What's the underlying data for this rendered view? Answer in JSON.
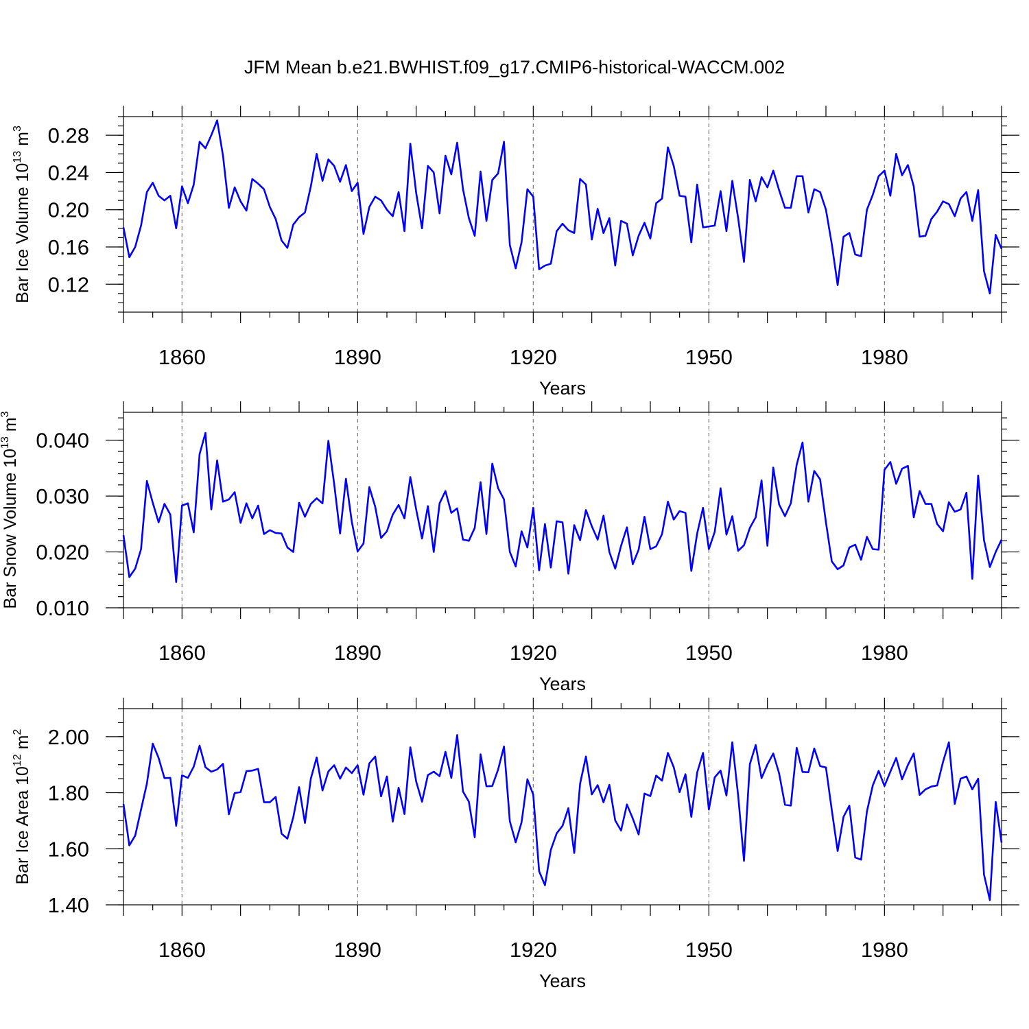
{
  "figure": {
    "title": "JFM Mean b.e21.BWHIST.f09_g17.CMIP6-historical-WACCM.002"
  },
  "chart_data": [
    {
      "type": "line",
      "name": "ice-volume",
      "ylabel": {
        "text": "Bar Ice Volume 10",
        "exp": "13",
        "unit": " m",
        "unit_exp": "3"
      },
      "xlabel": "Years",
      "xlim": [
        1850,
        2000
      ],
      "ylim": [
        0.09,
        0.3
      ],
      "yticks": [
        0.12,
        0.16,
        0.2,
        0.24,
        0.28
      ],
      "ytick_labels": [
        "0.12",
        "0.16",
        "0.20",
        "0.24",
        "0.28"
      ],
      "yminor_step": 0.01,
      "xticks": [
        1860,
        1890,
        1920,
        1950,
        1980
      ],
      "xtick_labels": [
        "1860",
        "1890",
        "1920",
        "1950",
        "1980"
      ],
      "x_start": 1850,
      "values": [
        0.181,
        0.149,
        0.16,
        0.183,
        0.219,
        0.229,
        0.215,
        0.21,
        0.215,
        0.18,
        0.225,
        0.207,
        0.227,
        0.273,
        0.266,
        0.28,
        0.296,
        0.258,
        0.202,
        0.224,
        0.209,
        0.199,
        0.233,
        0.228,
        0.222,
        0.203,
        0.19,
        0.167,
        0.159,
        0.184,
        0.192,
        0.197,
        0.225,
        0.26,
        0.231,
        0.254,
        0.247,
        0.23,
        0.248,
        0.22,
        0.229,
        0.174,
        0.203,
        0.214,
        0.21,
        0.2,
        0.193,
        0.219,
        0.177,
        0.271,
        0.218,
        0.18,
        0.247,
        0.24,
        0.196,
        0.258,
        0.238,
        0.272,
        0.222,
        0.191,
        0.172,
        0.241,
        0.188,
        0.232,
        0.239,
        0.273,
        0.162,
        0.137,
        0.165,
        0.222,
        0.214,
        0.136,
        0.14,
        0.142,
        0.177,
        0.185,
        0.178,
        0.175,
        0.233,
        0.227,
        0.168,
        0.201,
        0.175,
        0.191,
        0.14,
        0.188,
        0.185,
        0.151,
        0.172,
        0.186,
        0.169,
        0.207,
        0.212,
        0.267,
        0.247,
        0.215,
        0.214,
        0.165,
        0.227,
        0.181,
        0.182,
        0.183,
        0.22,
        0.177,
        0.231,
        0.191,
        0.144,
        0.232,
        0.209,
        0.235,
        0.224,
        0.242,
        0.221,
        0.202,
        0.202,
        0.236,
        0.236,
        0.197,
        0.222,
        0.219,
        0.2,
        0.163,
        0.119,
        0.171,
        0.175,
        0.152,
        0.15,
        0.2,
        0.216,
        0.236,
        0.242,
        0.215,
        0.26,
        0.237,
        0.248,
        0.225,
        0.171,
        0.172,
        0.19,
        0.198,
        0.209,
        0.206,
        0.193,
        0.212,
        0.219,
        0.188,
        0.221,
        0.134,
        0.11,
        0.173,
        0.158
      ]
    },
    {
      "type": "line",
      "name": "snow-volume",
      "ylabel": {
        "text": "Bar Snow Volume 10",
        "exp": "13",
        "unit": " m",
        "unit_exp": "3"
      },
      "xlabel": "Years",
      "xlim": [
        1850,
        2000
      ],
      "ylim": [
        0.01,
        0.045
      ],
      "yticks": [
        0.01,
        0.02,
        0.03,
        0.04
      ],
      "ytick_labels": [
        "0.010",
        "0.020",
        "0.030",
        "0.040"
      ],
      "yminor_step": 0.002,
      "xticks": [
        1860,
        1890,
        1920,
        1950,
        1980
      ],
      "xtick_labels": [
        "1860",
        "1890",
        "1920",
        "1950",
        "1980"
      ],
      "x_start": 1850,
      "values": [
        0.023,
        0.0155,
        0.017,
        0.0205,
        0.0327,
        0.0288,
        0.0253,
        0.0286,
        0.0267,
        0.0146,
        0.0283,
        0.0287,
        0.0235,
        0.0375,
        0.0413,
        0.0276,
        0.0364,
        0.029,
        0.0294,
        0.0307,
        0.0252,
        0.0287,
        0.026,
        0.0283,
        0.0232,
        0.0239,
        0.0234,
        0.0233,
        0.0208,
        0.02,
        0.0288,
        0.0263,
        0.0286,
        0.0296,
        0.0287,
        0.0399,
        0.0321,
        0.0233,
        0.0331,
        0.0254,
        0.0201,
        0.0215,
        0.0316,
        0.0281,
        0.0225,
        0.0237,
        0.0267,
        0.0284,
        0.026,
        0.0334,
        0.0276,
        0.0224,
        0.0282,
        0.02,
        0.0287,
        0.0309,
        0.027,
        0.0278,
        0.0222,
        0.022,
        0.0243,
        0.0325,
        0.0232,
        0.0358,
        0.0314,
        0.0294,
        0.02,
        0.0174,
        0.0237,
        0.0208,
        0.0279,
        0.0167,
        0.025,
        0.0172,
        0.0255,
        0.0253,
        0.0161,
        0.0248,
        0.0221,
        0.0275,
        0.0246,
        0.0222,
        0.0265,
        0.02,
        0.017,
        0.0211,
        0.0244,
        0.0178,
        0.0204,
        0.0263,
        0.0205,
        0.021,
        0.0232,
        0.029,
        0.0258,
        0.0273,
        0.027,
        0.0166,
        0.0233,
        0.0279,
        0.0205,
        0.0236,
        0.0314,
        0.0231,
        0.0264,
        0.0202,
        0.0212,
        0.0243,
        0.0262,
        0.0328,
        0.0211,
        0.0351,
        0.0285,
        0.0264,
        0.0287,
        0.0356,
        0.0396,
        0.029,
        0.0345,
        0.033,
        0.0253,
        0.0183,
        0.0169,
        0.0176,
        0.0208,
        0.0213,
        0.0186,
        0.0227,
        0.0205,
        0.0204,
        0.0347,
        0.0361,
        0.0322,
        0.0349,
        0.0354,
        0.0262,
        0.0309,
        0.0286,
        0.0286,
        0.025,
        0.0237,
        0.0289,
        0.0272,
        0.0276,
        0.0306,
        0.0152,
        0.0337,
        0.0221,
        0.0173,
        0.02,
        0.0222
      ]
    },
    {
      "type": "line",
      "name": "ice-area",
      "ylabel": {
        "text": "Bar Ice Area 10",
        "exp": "12",
        "unit": " m",
        "unit_exp": "2"
      },
      "xlabel": "Years",
      "xlim": [
        1850,
        2000
      ],
      "ylim": [
        1.4,
        2.1
      ],
      "yticks": [
        1.4,
        1.6,
        1.8,
        2.0
      ],
      "ytick_labels": [
        "1.40",
        "1.60",
        "1.80",
        "2.00"
      ],
      "yminor_step": 0.05,
      "xticks": [
        1860,
        1890,
        1920,
        1950,
        1980
      ],
      "xtick_labels": [
        "1860",
        "1890",
        "1920",
        "1950",
        "1980"
      ],
      "x_start": 1850,
      "values": [
        1.76,
        1.612,
        1.647,
        1.74,
        1.833,
        1.975,
        1.924,
        1.852,
        1.853,
        1.682,
        1.862,
        1.853,
        1.893,
        1.968,
        1.891,
        1.875,
        1.883,
        1.903,
        1.723,
        1.799,
        1.802,
        1.877,
        1.879,
        1.885,
        1.766,
        1.766,
        1.785,
        1.654,
        1.636,
        1.712,
        1.82,
        1.692,
        1.85,
        1.926,
        1.808,
        1.876,
        1.898,
        1.85,
        1.89,
        1.87,
        1.898,
        1.793,
        1.905,
        1.929,
        1.787,
        1.858,
        1.697,
        1.818,
        1.724,
        1.962,
        1.84,
        1.768,
        1.863,
        1.875,
        1.859,
        1.946,
        1.853,
        2.006,
        1.804,
        1.768,
        1.641,
        1.937,
        1.823,
        1.824,
        1.883,
        1.965,
        1.698,
        1.623,
        1.694,
        1.848,
        1.793,
        1.52,
        1.47,
        1.596,
        1.655,
        1.682,
        1.745,
        1.585,
        1.832,
        1.929,
        1.794,
        1.827,
        1.766,
        1.828,
        1.701,
        1.665,
        1.758,
        1.708,
        1.651,
        1.797,
        1.788,
        1.861,
        1.843,
        1.942,
        1.891,
        1.802,
        1.866,
        1.714,
        1.872,
        1.942,
        1.74,
        1.855,
        1.879,
        1.79,
        1.98,
        1.79,
        1.557,
        1.902,
        1.97,
        1.852,
        1.901,
        1.94,
        1.869,
        1.757,
        1.754,
        1.96,
        1.874,
        1.873,
        1.958,
        1.895,
        1.89,
        1.738,
        1.592,
        1.714,
        1.754,
        1.569,
        1.561,
        1.733,
        1.826,
        1.878,
        1.824,
        1.875,
        1.924,
        1.848,
        1.899,
        1.94,
        1.792,
        1.812,
        1.822,
        1.826,
        1.91,
        1.98,
        1.76,
        1.85,
        1.858,
        1.812,
        1.85,
        1.508,
        1.417,
        1.767,
        1.622
      ]
    }
  ]
}
